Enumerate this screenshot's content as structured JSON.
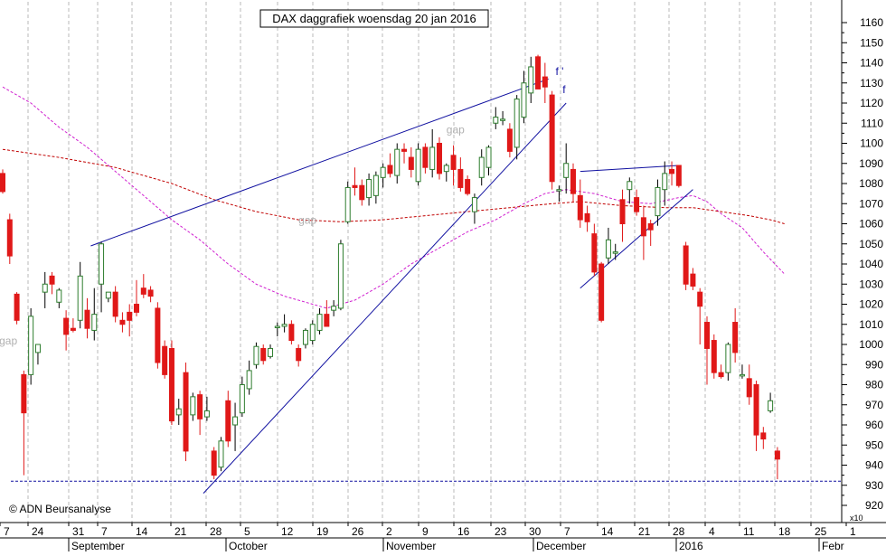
{
  "chart_data": {
    "type": "candlestick",
    "title": "DAX daggrafiek woensdag 20 jan 2016",
    "watermark": "© ADN Beursanalyse",
    "y_axis": {
      "min": 920,
      "max": 1160,
      "step": 10,
      "multiplier_label": "x10",
      "tick_labels": [
        "920",
        "930",
        "940",
        "950",
        "960",
        "970",
        "980",
        "990",
        "1000",
        "1010",
        "1020",
        "1030",
        "1040",
        "1050",
        "1060",
        "1070",
        "1080",
        "1090",
        "1100",
        "1110",
        "1120",
        "1130",
        "1140",
        "1150",
        "1160"
      ]
    },
    "x_axis": {
      "day_labels": [
        "7",
        "24",
        "31",
        "7",
        "14",
        "21",
        "28",
        "5",
        "12",
        "19",
        "26",
        "2",
        "9",
        "16",
        "23",
        "30",
        "7",
        "14",
        "21",
        "28",
        "4",
        "11",
        "18",
        "25",
        "1"
      ],
      "month_labels": [
        "September",
        "October",
        "November",
        "December",
        "2016",
        "Febr"
      ]
    },
    "annotations": [
      {
        "text": "gap",
        "near_value": 1001
      },
      {
        "text": "gap",
        "near_value": 1061
      },
      {
        "text": "gap",
        "near_value": 1105
      },
      {
        "text": "f '",
        "near_value": 1133
      },
      {
        "text": "f",
        "near_value": 1125
      }
    ],
    "colors": {
      "up": "#2e7d2e",
      "down": "#e01818",
      "trendline": "#1010a0",
      "ma_short": "#d020d0",
      "ma_long": "#c00000",
      "support": "#1010a0",
      "grid": "#b8b8b8",
      "annotation": "#b0b0b0"
    },
    "candles": [
      {
        "o": 1085,
        "h": 1087,
        "l": 1075,
        "c": 1076
      },
      {
        "o": 1062,
        "h": 1065,
        "l": 1040,
        "c": 1044
      },
      {
        "o": 1025,
        "h": 1026,
        "l": 1010,
        "c": 1012
      },
      {
        "o": 985,
        "h": 987,
        "l": 935,
        "c": 966
      },
      {
        "o": 985,
        "h": 1018,
        "l": 980,
        "c": 1014
      },
      {
        "o": 996,
        "h": 1000,
        "l": 990,
        "c": 1000
      },
      {
        "o": 1026,
        "h": 1036,
        "l": 1018,
        "c": 1030
      },
      {
        "o": 1034,
        "h": 1036,
        "l": 1025,
        "c": 1030
      },
      {
        "o": 1021,
        "h": 1028,
        "l": 1018,
        "c": 1027
      },
      {
        "o": 1013,
        "h": 1017,
        "l": 997,
        "c": 1005
      },
      {
        "o": 1008,
        "h": 1013,
        "l": 1006,
        "c": 1007
      },
      {
        "o": 1012,
        "h": 1041,
        "l": 1008,
        "c": 1034
      },
      {
        "o": 1017,
        "h": 1023,
        "l": 1003,
        "c": 1008
      },
      {
        "o": 1007,
        "h": 1028,
        "l": 1002,
        "c": 1015
      },
      {
        "o": 1030,
        "h": 1051,
        "l": 1016,
        "c": 1050
      },
      {
        "o": 1023,
        "h": 1026,
        "l": 1021,
        "c": 1026
      },
      {
        "o": 1026,
        "h": 1029,
        "l": 1011,
        "c": 1014
      },
      {
        "o": 1012,
        "h": 1016,
        "l": 1006,
        "c": 1010
      },
      {
        "o": 1016,
        "h": 1020,
        "l": 1004,
        "c": 1012
      },
      {
        "o": 1020,
        "h": 1032,
        "l": 1014,
        "c": 1016
      },
      {
        "o": 1028,
        "h": 1035,
        "l": 1023,
        "c": 1025
      },
      {
        "o": 1027,
        "h": 1029,
        "l": 1021,
        "c": 1024
      },
      {
        "o": 1018,
        "h": 1021,
        "l": 988,
        "c": 991
      },
      {
        "o": 999,
        "h": 1002,
        "l": 983,
        "c": 985
      },
      {
        "o": 998,
        "h": 1002,
        "l": 960,
        "c": 962
      },
      {
        "o": 965,
        "h": 973,
        "l": 960,
        "c": 968
      },
      {
        "o": 986,
        "h": 991,
        "l": 942,
        "c": 947
      },
      {
        "o": 965,
        "h": 976,
        "l": 962,
        "c": 974
      },
      {
        "o": 975,
        "h": 977,
        "l": 955,
        "c": 963
      },
      {
        "o": 964,
        "h": 974,
        "l": 962,
        "c": 967
      },
      {
        "o": 947,
        "h": 949,
        "l": 933,
        "c": 935
      },
      {
        "o": 939,
        "h": 954,
        "l": 937,
        "c": 952
      },
      {
        "o": 972,
        "h": 977,
        "l": 949,
        "c": 952
      },
      {
        "o": 960,
        "h": 971,
        "l": 947,
        "c": 964
      },
      {
        "o": 966,
        "h": 984,
        "l": 964,
        "c": 980
      },
      {
        "o": 978,
        "h": 992,
        "l": 975,
        "c": 987
      },
      {
        "o": 990,
        "h": 1001,
        "l": 988,
        "c": 999
      },
      {
        "o": 998,
        "h": 1000,
        "l": 990,
        "c": 992
      },
      {
        "o": 994,
        "h": 1000,
        "l": 993,
        "c": 998
      },
      {
        "o": 1009,
        "h": 1011,
        "l": 1004,
        "c": 1009
      },
      {
        "o": 1009,
        "h": 1015,
        "l": 1006,
        "c": 1010
      },
      {
        "o": 1010,
        "h": 1012,
        "l": 1000,
        "c": 1002
      },
      {
        "o": 998,
        "h": 1000,
        "l": 989,
        "c": 992
      },
      {
        "o": 1000,
        "h": 1008,
        "l": 998,
        "c": 1007
      },
      {
        "o": 1002,
        "h": 1012,
        "l": 1000,
        "c": 1010
      },
      {
        "o": 1007,
        "h": 1018,
        "l": 1005,
        "c": 1015
      },
      {
        "o": 1015,
        "h": 1022,
        "l": 1009,
        "c": 1009
      },
      {
        "o": 1017,
        "h": 1022,
        "l": 1014,
        "c": 1019
      },
      {
        "o": 1018,
        "h": 1052,
        "l": 1017,
        "c": 1050
      },
      {
        "o": 1061,
        "h": 1081,
        "l": 1060,
        "c": 1078
      },
      {
        "o": 1079,
        "h": 1088,
        "l": 1074,
        "c": 1078
      },
      {
        "o": 1079,
        "h": 1082,
        "l": 1069,
        "c": 1072
      },
      {
        "o": 1073,
        "h": 1085,
        "l": 1069,
        "c": 1082
      },
      {
        "o": 1074,
        "h": 1086,
        "l": 1070,
        "c": 1084
      },
      {
        "o": 1083,
        "h": 1090,
        "l": 1078,
        "c": 1088
      },
      {
        "o": 1089,
        "h": 1095,
        "l": 1083,
        "c": 1085
      },
      {
        "o": 1084,
        "h": 1100,
        "l": 1080,
        "c": 1097
      },
      {
        "o": 1097,
        "h": 1100,
        "l": 1090,
        "c": 1096
      },
      {
        "o": 1093,
        "h": 1098,
        "l": 1083,
        "c": 1087
      },
      {
        "o": 1081,
        "h": 1100,
        "l": 1079,
        "c": 1097
      },
      {
        "o": 1098,
        "h": 1100,
        "l": 1085,
        "c": 1088
      },
      {
        "o": 1087,
        "h": 1107,
        "l": 1083,
        "c": 1098
      },
      {
        "o": 1100,
        "h": 1103,
        "l": 1082,
        "c": 1085
      },
      {
        "o": 1086,
        "h": 1090,
        "l": 1081,
        "c": 1089
      },
      {
        "o": 1094,
        "h": 1099,
        "l": 1079,
        "c": 1087
      },
      {
        "o": 1087,
        "h": 1093,
        "l": 1076,
        "c": 1078
      },
      {
        "o": 1082,
        "h": 1084,
        "l": 1074,
        "c": 1075
      },
      {
        "o": 1066,
        "h": 1075,
        "l": 1060,
        "c": 1073
      },
      {
        "o": 1083,
        "h": 1097,
        "l": 1079,
        "c": 1093
      },
      {
        "o": 1088,
        "h": 1099,
        "l": 1084,
        "c": 1098
      },
      {
        "o": 1110,
        "h": 1118,
        "l": 1107,
        "c": 1113
      },
      {
        "o": 1112,
        "h": 1116,
        "l": 1109,
        "c": 1112
      },
      {
        "o": 1107,
        "h": 1110,
        "l": 1093,
        "c": 1096
      },
      {
        "o": 1098,
        "h": 1124,
        "l": 1092,
        "c": 1122
      },
      {
        "o": 1113,
        "h": 1136,
        "l": 1110,
        "c": 1130
      },
      {
        "o": 1125,
        "h": 1143,
        "l": 1120,
        "c": 1138
      },
      {
        "o": 1143,
        "h": 1144,
        "l": 1127,
        "c": 1127
      },
      {
        "o": 1133,
        "h": 1140,
        "l": 1120,
        "c": 1128
      },
      {
        "o": 1124,
        "h": 1126,
        "l": 1077,
        "c": 1081
      },
      {
        "o": 1077,
        "h": 1079,
        "l": 1071,
        "c": 1077
      },
      {
        "o": 1083,
        "h": 1100,
        "l": 1075,
        "c": 1090
      },
      {
        "o": 1087,
        "h": 1090,
        "l": 1071,
        "c": 1075
      },
      {
        "o": 1074,
        "h": 1082,
        "l": 1058,
        "c": 1062
      },
      {
        "o": 1065,
        "h": 1069,
        "l": 1056,
        "c": 1061
      },
      {
        "o": 1055,
        "h": 1060,
        "l": 1034,
        "c": 1036
      },
      {
        "o": 1040,
        "h": 1041,
        "l": 1011,
        "c": 1012
      },
      {
        "o": 1043,
        "h": 1058,
        "l": 1040,
        "c": 1052
      },
      {
        "o": 1046,
        "h": 1050,
        "l": 1042,
        "c": 1046
      },
      {
        "o": 1072,
        "h": 1077,
        "l": 1051,
        "c": 1060
      },
      {
        "o": 1077,
        "h": 1083,
        "l": 1070,
        "c": 1081
      },
      {
        "o": 1073,
        "h": 1077,
        "l": 1064,
        "c": 1066
      },
      {
        "o": 1063,
        "h": 1069,
        "l": 1042,
        "c": 1054
      },
      {
        "o": 1060,
        "h": 1062,
        "l": 1049,
        "c": 1057
      },
      {
        "o": 1064,
        "h": 1082,
        "l": 1059,
        "c": 1078
      },
      {
        "o": 1077,
        "h": 1091,
        "l": 1069,
        "c": 1085
      },
      {
        "o": 1087,
        "h": 1091,
        "l": 1079,
        "c": 1085
      },
      {
        "o": 1089,
        "h": 1089,
        "l": 1078,
        "c": 1079
      },
      {
        "o": 1049,
        "h": 1051,
        "l": 1027,
        "c": 1030
      },
      {
        "o": 1035,
        "h": 1038,
        "l": 1027,
        "c": 1029
      },
      {
        "o": 1026,
        "h": 1028,
        "l": 1000,
        "c": 1019
      },
      {
        "o": 1011,
        "h": 1014,
        "l": 980,
        "c": 998
      },
      {
        "o": 1002,
        "h": 1005,
        "l": 983,
        "c": 986
      },
      {
        "o": 986,
        "h": 990,
        "l": 983,
        "c": 984
      },
      {
        "o": 986,
        "h": 1001,
        "l": 982,
        "c": 1000
      },
      {
        "o": 1011,
        "h": 1018,
        "l": 991,
        "c": 996
      },
      {
        "o": 985,
        "h": 990,
        "l": 983,
        "c": 985
      },
      {
        "o": 983,
        "h": 990,
        "l": 970,
        "c": 974
      },
      {
        "o": 980,
        "h": 982,
        "l": 947,
        "c": 955
      },
      {
        "o": 956,
        "h": 959,
        "l": 948,
        "c": 953
      },
      {
        "o": 967,
        "h": 976,
        "l": 966,
        "c": 972
      },
      {
        "o": 947,
        "h": 949,
        "l": 933,
        "c": 943
      }
    ]
  }
}
